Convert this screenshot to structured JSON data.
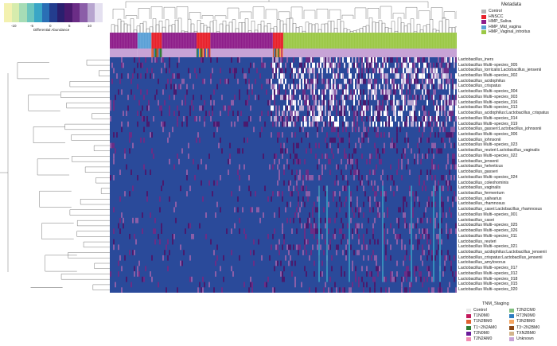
{
  "scale": {
    "title": "Differential Abundance",
    "ticks": [
      "-10",
      "-5",
      "0",
      "5",
      "10"
    ],
    "colors": [
      "#f3f1b0",
      "#d6ecad",
      "#a6dcb6",
      "#6cc5be",
      "#3aa6c6",
      "#2a6fb5",
      "#233d8e",
      "#2a1f6e",
      "#4a1a6e",
      "#6b2d86",
      "#8b5ea8",
      "#b7a5cf",
      "#e4e0f0"
    ]
  },
  "row_labels": {
    "metadata": "Metadata",
    "tnm": "TNM_Staging"
  },
  "metadata_legend": {
    "title": "Metadata",
    "items": [
      {
        "label": "Control",
        "color": "#b3b3b3"
      },
      {
        "label": "HNSCC",
        "color": "#e7212b"
      },
      {
        "label": "HMP_Saliva",
        "color": "#8e1d8a"
      },
      {
        "label": "HMP_Mid_vagina",
        "color": "#5aa0d6"
      },
      {
        "label": "HMP_Vaginal_introitus",
        "color": "#9bc846"
      }
    ]
  },
  "tnm_legend": {
    "title": "TNM_Staging",
    "items": [
      {
        "label": "Control",
        "color": "#e8e8e8"
      },
      {
        "label": "T2N2CM0",
        "color": "#7fbf7f"
      },
      {
        "label": "T1N0M0",
        "color": "#c2185b"
      },
      {
        "label": "RT3N0M0",
        "color": "#2b7cc0"
      },
      {
        "label": "T1N2BM0",
        "color": "#e06030"
      },
      {
        "label": "T3N2BM0",
        "color": "#f4a460"
      },
      {
        "label": "T1~2N2AM0",
        "color": "#2e7d32"
      },
      {
        "label": "T3~2N2BM0",
        "color": "#8b4513"
      },
      {
        "label": "T2N0M0",
        "color": "#6a1b9a"
      },
      {
        "label": "TXN2BM0",
        "color": "#d2b48c"
      },
      {
        "label": "T2N2AM0",
        "color": "#f28db2"
      },
      {
        "label": "Unknown",
        "color": "#c7a3d6"
      }
    ]
  },
  "chart_data": {
    "type": "heatmap",
    "rows": [
      "Lactobacillus_iners",
      "Lactobacillus Multi–species_005",
      "Lactobacillus_torricalis:Lactobacillus_jensenii",
      "Lactobacillus Multi–species_002",
      "Lactobacillus_acidophilus",
      "Lactobacillus_crispatus",
      "Lactobacillus Multi–species_004",
      "Lactobacillus Multi–species_003",
      "Lactobacillus Multi–species_016",
      "Lactobacillus Multi–species_013",
      "Lactobacillus_acidophilus:Lactobacillus_crispatus",
      "Lactobacillus Multi–species_014",
      "Lactobacillus Multi–species_019",
      "Lactobacillus_gasseri:Lactobacillus_johnsonii",
      "Lactobacillus Multi–species_006",
      "Lactobacillus_johnsonii",
      "Lactobacillus Multi–species_023",
      "Lactobacillus_reuteri:Lactobacillus_vaginalis",
      "Lactobacillus Multi–species_022",
      "Lactobacillus_jensenii",
      "Lactobacillus_helveticus",
      "Lactobacillus_gasseri",
      "Lactobacillus Multi–species_024",
      "Lactobacillus_coleohominis",
      "Lactobacillus_vaginalis",
      "Lactobacillus_fermentum",
      "Lactobacillus_salivarius",
      "Lactobacillus_rhamnosus",
      "Lactobacillus_casei:Lactobacillus_rhamnosus",
      "Lactobacillus Multi–species_001",
      "Lactobacillus_casei",
      "Lactobacillus Multi–species_025",
      "Lactobacillus Multi–species_026",
      "Lactobacillus Multi–species_011",
      "Lactobacillus_reuteri",
      "Lactobacillus Multi–species_021",
      "Lactobacillus_acidophilus:Lactobacillus_jensenii",
      "Lactobacillus_crispatus:Lactobacillus_jensenii",
      "Lactobacillus_amylovorus",
      "Lactobacillus Multi–species_017",
      "Lactobacillus Multi–species_012",
      "Lactobacillus Multi–species_018",
      "Lactobacillus Multi–species_015",
      "Lactobacillus Multi–species_020"
    ],
    "color_range": [
      -10,
      10
    ],
    "base_color": "#2a4a9a",
    "column_groups": [
      {
        "group": "HMP_Saliva",
        "fraction": 0.08
      },
      {
        "group": "HMP_Mid_vagina",
        "fraction": 0.04
      },
      {
        "group": "HNSCC",
        "fraction": 0.03
      },
      {
        "group": "HMP_Saliva",
        "fraction": 0.1
      },
      {
        "group": "HNSCC",
        "fraction": 0.04
      },
      {
        "group": "HMP_Saliva",
        "fraction": 0.18
      },
      {
        "group": "HNSCC",
        "fraction": 0.03
      },
      {
        "group": "HMP_Vaginal_introitus",
        "fraction": 0.5
      }
    ]
  }
}
